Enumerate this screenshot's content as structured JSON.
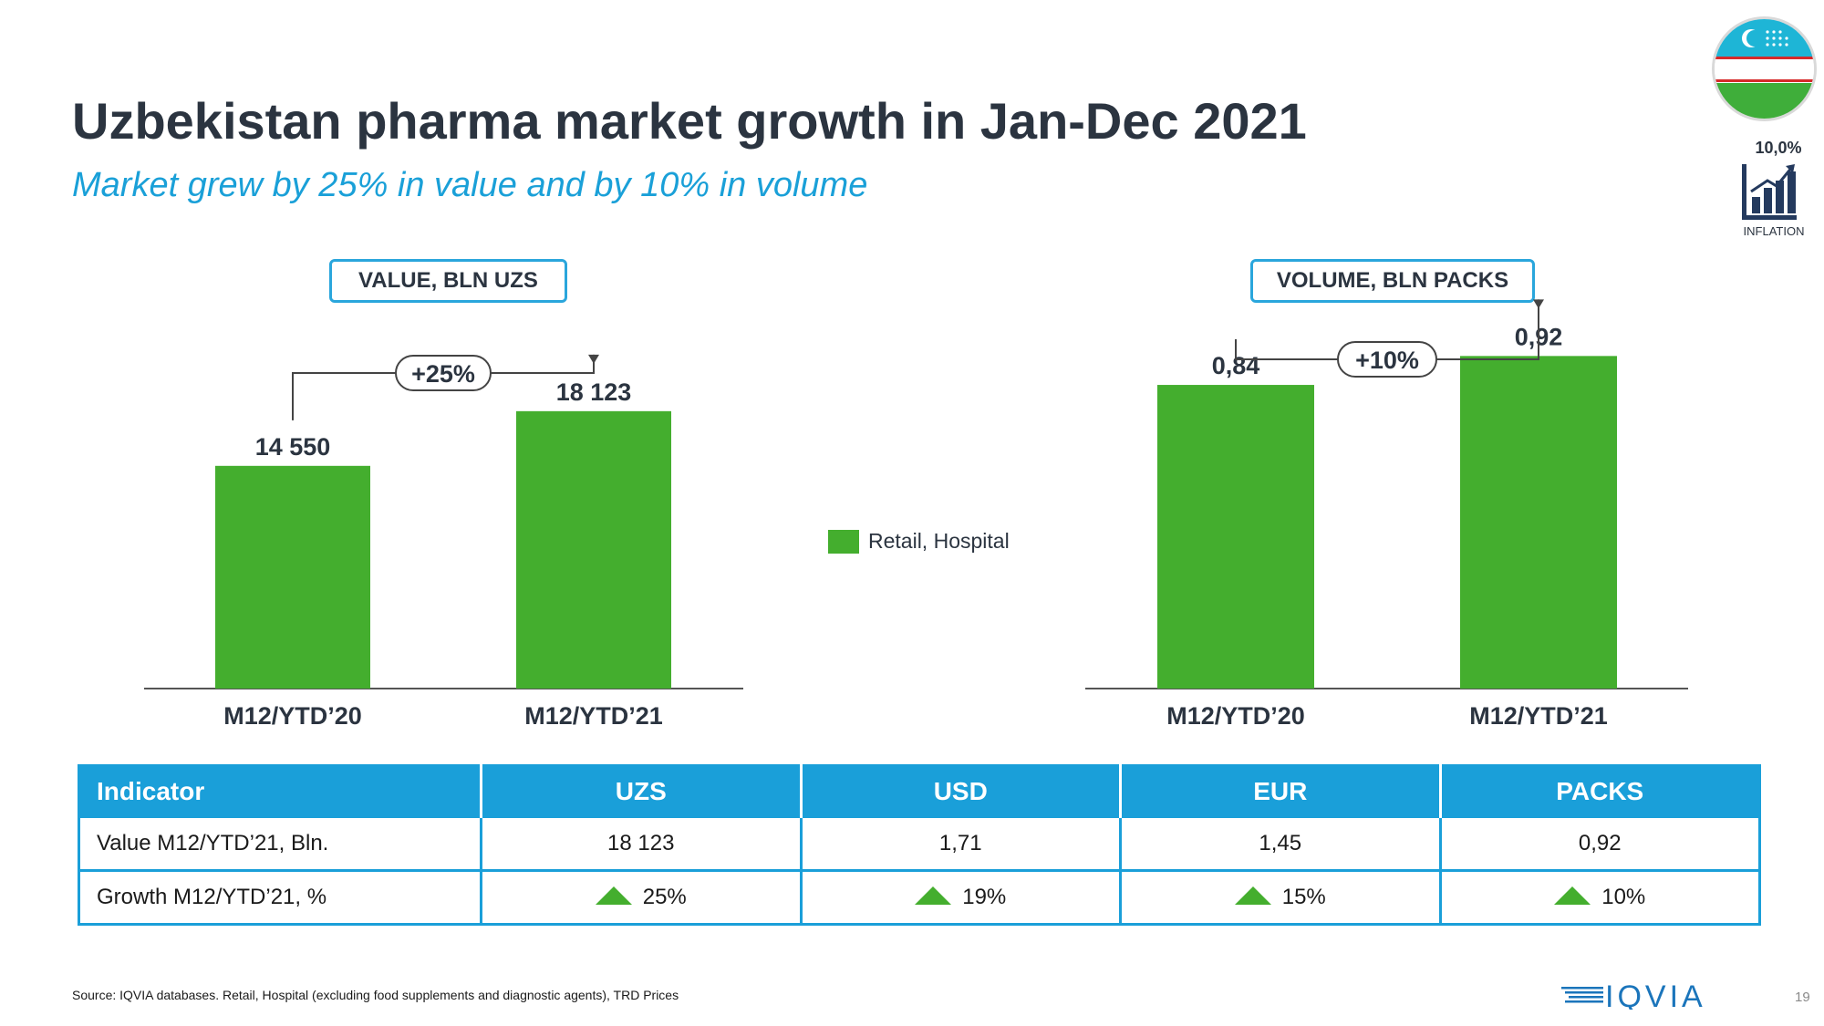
{
  "header": {
    "title": "Uzbekistan pharma market growth in Jan-Dec 2021",
    "subtitle": "Market grew by 25% in value and by 10% in volume"
  },
  "colors": {
    "title": "#2b3440",
    "accent_blue": "#1aa0d8",
    "bar_green": "#44ae2e",
    "flag_blue": "#1eb5d6",
    "flag_red": "#d62b2b",
    "flag_green": "#3fae3a",
    "logo_blue": "#1b75bb"
  },
  "inflation": {
    "value": "10,0%",
    "label": "INFLATION",
    "icon": "bar-growth-icon"
  },
  "flag": {
    "icon": "uzbekistan-flag-icon"
  },
  "legend": {
    "label": "Retail, Hospital"
  },
  "chart_data": [
    {
      "type": "bar",
      "title": "VALUE, BLN UZS",
      "categories": [
        "M12/YTD’20",
        "M12/YTD’21"
      ],
      "values": [
        14550,
        18123
      ],
      "value_labels": [
        "14 550",
        "18 123"
      ],
      "series": [
        {
          "name": "Retail, Hospital",
          "values": [
            14550,
            18123
          ]
        }
      ],
      "growth_label": "+25%",
      "ylim": [
        0,
        23000
      ],
      "grid": false,
      "legend_position": "right"
    },
    {
      "type": "bar",
      "title": "VOLUME, BLN PACKS",
      "categories": [
        "M12/YTD’20",
        "M12/YTD’21"
      ],
      "values": [
        0.84,
        0.92
      ],
      "value_labels": [
        "0,84",
        "0,92"
      ],
      "series": [
        {
          "name": "Retail, Hospital",
          "values": [
            0.84,
            0.92
          ]
        }
      ],
      "growth_label": "+10%",
      "ylim": [
        0,
        1.1
      ],
      "grid": false,
      "legend_position": "left"
    }
  ],
  "table": {
    "headers": [
      "Indicator",
      "UZS",
      "USD",
      "EUR",
      "PACKS"
    ],
    "rows": [
      {
        "label": "Value  M12/YTD’21, Bln.",
        "cells": [
          "18 123",
          "1,71",
          "1,45",
          "0,92"
        ]
      },
      {
        "label": "Growth  M12/YTD’21, %",
        "cells": [
          "25%",
          "19%",
          "15%",
          "10%"
        ]
      }
    ]
  },
  "footer": {
    "source": "Source: IQVIA databases. Retail, Hospital (excluding food supplements and diagnostic agents), TRD Prices",
    "logo_text": "IQVIA",
    "page_number": "19"
  }
}
